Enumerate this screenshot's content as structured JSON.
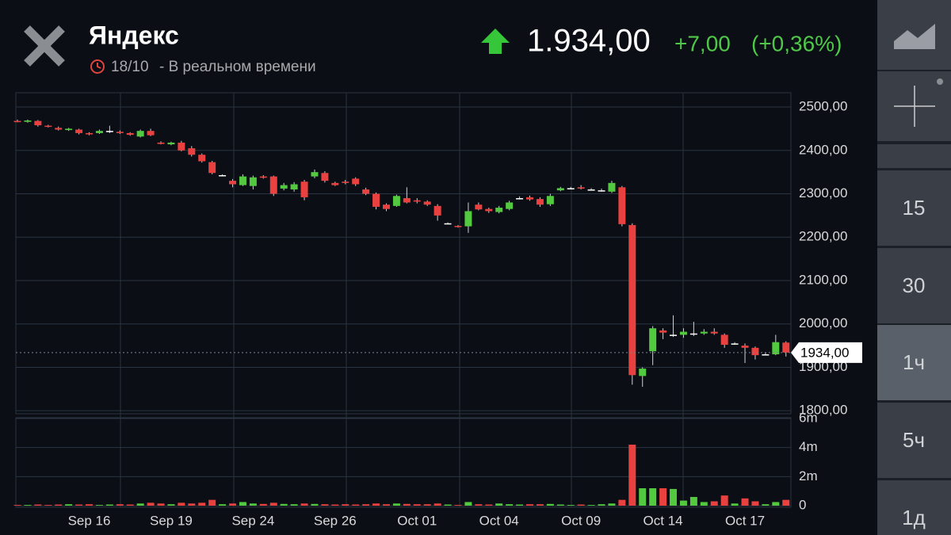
{
  "header": {
    "title": "Яндекс",
    "date": "18/10",
    "status": "- В реальном времени",
    "price": "1.934,00",
    "change": "+7,00",
    "change_pct": "(+0,36%)"
  },
  "sidebar": {
    "intervals": [
      "15",
      "30",
      "1ч",
      "5ч",
      "1д"
    ],
    "selected": "1ч"
  },
  "chart_data": {
    "type": "candlestick",
    "up_color": "#52c93f",
    "down_color": "#e8413f",
    "doji_color": "#ffffff",
    "categories": [
      null,
      null,
      null,
      null,
      null,
      null,
      null,
      "Sep 16",
      null,
      null,
      null,
      null,
      null,
      null,
      null,
      "Sep 19",
      null,
      null,
      null,
      null,
      null,
      null,
      null,
      "Sep 24",
      null,
      null,
      null,
      null,
      null,
      null,
      null,
      "Sep 26",
      null,
      null,
      null,
      null,
      null,
      null,
      null,
      "Oct 01",
      null,
      null,
      null,
      null,
      null,
      null,
      null,
      "Oct 04",
      null,
      null,
      null,
      null,
      null,
      null,
      null,
      "Oct 09",
      null,
      null,
      null,
      null,
      null,
      null,
      null,
      "Oct 14",
      null,
      null,
      null,
      null,
      null,
      null,
      null,
      "Oct 17",
      null,
      null,
      null,
      null
    ],
    "open": [
      2468,
      2466,
      2468,
      2457,
      2452,
      2447,
      2448,
      2440,
      2440,
      2445,
      2443,
      2440,
      2432,
      2445,
      2418,
      2414,
      2418,
      2405,
      2390,
      2373,
      2343,
      2330,
      2320,
      2318,
      2340,
      2340,
      2312,
      2310,
      2328,
      2340,
      2348,
      2325,
      2328,
      2335,
      2310,
      2300,
      2275,
      2272,
      2290,
      2285,
      2282,
      2272,
      2232,
      2226,
      2225,
      2275,
      2265,
      2258,
      2265,
      2290,
      2292,
      2288,
      2276,
      2308,
      2313,
      2315,
      2310,
      2308,
      2305,
      2315,
      2228,
      1880,
      1937,
      1985,
      1975,
      1975,
      1978,
      1978,
      1982,
      1975,
      1955,
      1950,
      1945,
      1930,
      1930,
      1957
    ],
    "high": [
      2471,
      2471,
      2470,
      2459,
      2455,
      2452,
      2450,
      2442,
      2448,
      2457,
      2446,
      2442,
      2448,
      2450,
      2421,
      2420,
      2422,
      2410,
      2393,
      2376,
      2345,
      2334,
      2345,
      2342,
      2343,
      2342,
      2325,
      2327,
      2332,
      2356,
      2352,
      2328,
      2332,
      2338,
      2314,
      2303,
      2278,
      2298,
      2315,
      2290,
      2285,
      2276,
      2234,
      2228,
      2280,
      2280,
      2268,
      2272,
      2284,
      2294,
      2296,
      2292,
      2300,
      2316,
      2316,
      2320,
      2313,
      2312,
      2330,
      2318,
      2232,
      1900,
      1995,
      1990,
      2020,
      1990,
      2005,
      1988,
      1990,
      1978,
      1958,
      1955,
      1948,
      1933,
      1975,
      1960
    ],
    "low": [
      2465,
      2464,
      2455,
      2453,
      2446,
      2445,
      2437,
      2435,
      2438,
      2440,
      2438,
      2434,
      2430,
      2433,
      2414,
      2412,
      2398,
      2386,
      2372,
      2345,
      2341,
      2315,
      2318,
      2310,
      2335,
      2295,
      2308,
      2305,
      2285,
      2336,
      2326,
      2318,
      2322,
      2318,
      2297,
      2264,
      2260,
      2270,
      2278,
      2278,
      2272,
      2238,
      2230,
      2222,
      2210,
      2262,
      2256,
      2255,
      2262,
      2287,
      2284,
      2270,
      2272,
      2306,
      2311,
      2310,
      2308,
      2305,
      2302,
      2225,
      1860,
      1855,
      1905,
      1965,
      1970,
      1968,
      1972,
      1975,
      1975,
      1945,
      1952,
      1910,
      1918,
      1928,
      1928,
      1925
    ],
    "close": [
      2467,
      2469,
      2458,
      2456,
      2448,
      2450,
      2440,
      2437,
      2445,
      2445,
      2440,
      2436,
      2445,
      2435,
      2415,
      2418,
      2400,
      2390,
      2375,
      2348,
      2343,
      2322,
      2340,
      2338,
      2337,
      2300,
      2320,
      2322,
      2292,
      2350,
      2330,
      2320,
      2325,
      2322,
      2300,
      2270,
      2265,
      2295,
      2280,
      2282,
      2275,
      2250,
      2232,
      2225,
      2260,
      2264,
      2260,
      2268,
      2280,
      2290,
      2287,
      2275,
      2295,
      2313,
      2313,
      2312,
      2310,
      2308,
      2325,
      2230,
      1882,
      1897,
      1990,
      1980,
      1975,
      1982,
      1978,
      1982,
      1978,
      1952,
      1955,
      1945,
      1928,
      1930,
      1958,
      1934
    ],
    "ylim": [
      1793,
      2533
    ],
    "yticks": [
      {
        "value": 1800,
        "label": "1800,00"
      },
      {
        "value": 1900,
        "label": "1900,00"
      },
      {
        "value": 2000,
        "label": "2000,00"
      },
      {
        "value": 2100,
        "label": "2100,00"
      },
      {
        "value": 2200,
        "label": "2200,00"
      },
      {
        "value": 2300,
        "label": "2300,00"
      },
      {
        "value": 2400,
        "label": "2400,00"
      },
      {
        "value": 2500,
        "label": "2500,00"
      }
    ],
    "last_price": {
      "value": 1934,
      "label": "1934,00"
    },
    "volume": {
      "values": [
        0.05,
        0.05,
        0.08,
        0.05,
        0.08,
        0.1,
        0.08,
        0.1,
        0.05,
        0.08,
        0.1,
        0.08,
        0.15,
        0.2,
        0.15,
        0.1,
        0.2,
        0.15,
        0.2,
        0.4,
        0.1,
        0.15,
        0.25,
        0.15,
        0.12,
        0.2,
        0.12,
        0.1,
        0.15,
        0.12,
        0.1,
        0.08,
        0.1,
        0.08,
        0.1,
        0.15,
        0.1,
        0.15,
        0.12,
        0.1,
        0.1,
        0.15,
        0.08,
        0.05,
        0.25,
        0.1,
        0.08,
        0.15,
        0.1,
        0.08,
        0.1,
        0.1,
        0.12,
        0.08,
        0.05,
        0.08,
        0.05,
        0.1,
        0.15,
        0.4,
        4.2,
        1.2,
        1.2,
        1.2,
        1.15,
        0.35,
        0.6,
        0.25,
        0.3,
        0.7,
        0.15,
        0.5,
        0.3,
        0.1,
        0.25,
        0.4
      ],
      "ylim": [
        0,
        6
      ],
      "yticks": [
        0,
        {
          "value": 2,
          "label": "2m"
        },
        {
          "value": 4,
          "label": "4m"
        },
        {
          "value": 6,
          "label": "6m"
        }
      ]
    }
  }
}
